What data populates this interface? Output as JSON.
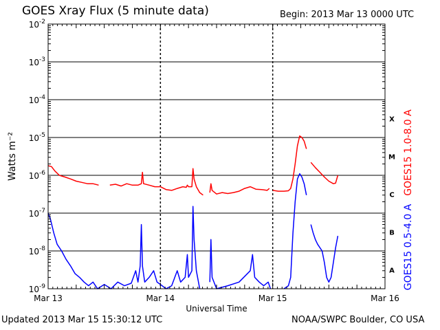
{
  "header": {
    "title": "GOES Xray Flux (5 minute data)",
    "begin": "Begin:  2013 Mar 13 0000 UTC"
  },
  "footer": {
    "updated": "Updated 2013 Mar 15 15:30:12 UTC",
    "credit": "NOAA/SWPC Boulder, CO USA"
  },
  "chart_data": {
    "type": "line",
    "title": "GOES Xray Flux (5 minute data)",
    "xlabel": "Universal Time",
    "ylabel": "Watts m⁻²",
    "yscale": "log",
    "ylim": [
      1e-09,
      0.01
    ],
    "xlim": [
      0,
      3
    ],
    "x_unit": "days since 2013 Mar 13 0000 UTC",
    "x_ticks": [
      {
        "x": 0,
        "label": "Mar 13"
      },
      {
        "x": 1,
        "label": "Mar 14"
      },
      {
        "x": 2,
        "label": "Mar 15"
      },
      {
        "x": 3,
        "label": "Mar 16"
      }
    ],
    "y_ticks": [
      {
        "exp": -2,
        "label": "10",
        "sup": "-2"
      },
      {
        "exp": -3,
        "label": "10",
        "sup": "-3"
      },
      {
        "exp": -4,
        "label": "10",
        "sup": "-4"
      },
      {
        "exp": -5,
        "label": "10",
        "sup": "-5"
      },
      {
        "exp": -6,
        "label": "10",
        "sup": "-6"
      },
      {
        "exp": -7,
        "label": "10",
        "sup": "-7"
      },
      {
        "exp": -8,
        "label": "10",
        "sup": "-8"
      },
      {
        "exp": -9,
        "label": "10",
        "sup": "-9"
      }
    ],
    "flare_classes": [
      {
        "label": "X",
        "exp": -4
      },
      {
        "label": "M",
        "exp": -5
      },
      {
        "label": "C",
        "exp": -6
      },
      {
        "label": "B",
        "exp": -7
      },
      {
        "label": "A",
        "exp": -8
      }
    ],
    "colors": {
      "long": "#ff0000",
      "short": "#0000ff",
      "grid": "#000000"
    },
    "series": [
      {
        "name": "GOES15 1.0-8.0 A",
        "color": "#ff0000",
        "segments": [
          [
            [
              0.0,
              1.8e-06
            ],
            [
              0.03,
              1.7e-06
            ],
            [
              0.06,
              1.3e-06
            ],
            [
              0.1,
              1e-06
            ],
            [
              0.15,
              9e-07
            ],
            [
              0.2,
              8e-07
            ],
            [
              0.25,
              7e-07
            ],
            [
              0.3,
              6.5e-07
            ],
            [
              0.35,
              6e-07
            ],
            [
              0.4,
              6e-07
            ],
            [
              0.45,
              5.5e-07
            ]
          ],
          [
            [
              0.55,
              5.5e-07
            ],
            [
              0.6,
              5.8e-07
            ],
            [
              0.65,
              5.2e-07
            ],
            [
              0.7,
              6e-07
            ],
            [
              0.75,
              5.5e-07
            ],
            [
              0.8,
              5.5e-07
            ],
            [
              0.83,
              6e-07
            ],
            [
              0.84,
              1.2e-06
            ],
            [
              0.85,
              6e-07
            ],
            [
              0.9,
              5.5e-07
            ],
            [
              0.95,
              5e-07
            ],
            [
              1.0,
              5e-07
            ],
            [
              1.05,
              4.2e-07
            ],
            [
              1.1,
              4e-07
            ],
            [
              1.15,
              4.5e-07
            ],
            [
              1.2,
              5e-07
            ],
            [
              1.23,
              4.8e-07
            ],
            [
              1.24,
              5.5e-07
            ],
            [
              1.25,
              5e-07
            ],
            [
              1.28,
              5e-07
            ],
            [
              1.29,
              1.5e-06
            ],
            [
              1.3,
              8e-07
            ],
            [
              1.32,
              5e-07
            ],
            [
              1.35,
              3.5e-07
            ],
            [
              1.38,
              3e-07
            ]
          ],
          [
            [
              1.44,
              3.5e-07
            ],
            [
              1.45,
              6e-07
            ],
            [
              1.46,
              4e-07
            ],
            [
              1.5,
              3.2e-07
            ],
            [
              1.55,
              3.5e-07
            ],
            [
              1.6,
              3.3e-07
            ],
            [
              1.65,
              3.5e-07
            ],
            [
              1.7,
              3.8e-07
            ],
            [
              1.75,
              4.5e-07
            ],
            [
              1.8,
              5e-07
            ],
            [
              1.85,
              4.3e-07
            ],
            [
              1.9,
              4.2e-07
            ],
            [
              1.95,
              4e-07
            ],
            [
              1.97,
              4.5e-07
            ]
          ],
          [
            [
              2.0,
              4e-07
            ],
            [
              2.05,
              3.8e-07
            ],
            [
              2.1,
              3.8e-07
            ],
            [
              2.14,
              3.9e-07
            ],
            [
              2.16,
              4.5e-07
            ],
            [
              2.18,
              8e-07
            ],
            [
              2.2,
              2e-06
            ],
            [
              2.22,
              6e-06
            ],
            [
              2.24,
              1.1e-05
            ],
            [
              2.26,
              1e-05
            ],
            [
              2.28,
              8e-06
            ],
            [
              2.3,
              5e-06
            ]
          ],
          [
            [
              2.34,
              2.2e-06
            ],
            [
              2.38,
              1.6e-06
            ],
            [
              2.42,
              1.2e-06
            ],
            [
              2.46,
              9e-07
            ],
            [
              2.5,
              7e-07
            ],
            [
              2.54,
              6e-07
            ],
            [
              2.56,
              6.2e-07
            ],
            [
              2.58,
              1e-06
            ]
          ]
        ]
      },
      {
        "name": "GOES15 0.5-4.0 A",
        "color": "#0000ff",
        "segments": [
          [
            [
              0.0,
              1e-07
            ],
            [
              0.02,
              7e-08
            ],
            [
              0.05,
              3e-08
            ],
            [
              0.08,
              1.5e-08
            ],
            [
              0.12,
              1e-08
            ],
            [
              0.16,
              6e-09
            ],
            [
              0.2,
              4e-09
            ],
            [
              0.24,
              2.5e-09
            ],
            [
              0.28,
              2e-09
            ],
            [
              0.32,
              1.5e-09
            ],
            [
              0.36,
              1.2e-09
            ],
            [
              0.4,
              1.5e-09
            ],
            [
              0.44,
              1e-09
            ],
            [
              0.5,
              1.3e-09
            ],
            [
              0.56,
              1e-09
            ],
            [
              0.62,
              1.5e-09
            ],
            [
              0.68,
              1.2e-09
            ],
            [
              0.74,
              1.4e-09
            ],
            [
              0.78,
              3e-09
            ],
            [
              0.8,
              1.5e-09
            ],
            [
              0.82,
              4e-09
            ],
            [
              0.83,
              5e-08
            ],
            [
              0.84,
              4e-09
            ],
            [
              0.86,
              1.5e-09
            ],
            [
              0.9,
              2e-09
            ],
            [
              0.94,
              3e-09
            ],
            [
              0.97,
              1.5e-09
            ],
            [
              1.0,
              1.3e-09
            ],
            [
              1.05,
              1e-09
            ],
            [
              1.1,
              1.2e-09
            ],
            [
              1.15,
              3e-09
            ],
            [
              1.18,
              1.5e-09
            ],
            [
              1.22,
              2e-09
            ],
            [
              1.24,
              8e-09
            ],
            [
              1.25,
              2e-09
            ],
            [
              1.28,
              3e-09
            ],
            [
              1.29,
              1.5e-07
            ],
            [
              1.3,
              2e-08
            ],
            [
              1.32,
              3e-09
            ],
            [
              1.35,
              1e-09
            ]
          ],
          [
            [
              1.44,
              1.5e-09
            ],
            [
              1.45,
              2e-08
            ],
            [
              1.46,
              2e-09
            ],
            [
              1.5,
              1e-09
            ],
            [
              1.6,
              1.2e-09
            ],
            [
              1.7,
              1.5e-09
            ],
            [
              1.8,
              3e-09
            ],
            [
              1.82,
              8e-09
            ],
            [
              1.84,
              2e-09
            ],
            [
              1.88,
              1.5e-09
            ],
            [
              1.92,
              1.2e-09
            ],
            [
              1.96,
              1.5e-09
            ],
            [
              1.98,
              1e-09
            ]
          ],
          [
            [
              2.1,
              1e-09
            ],
            [
              2.14,
              1.2e-09
            ],
            [
              2.16,
              2e-09
            ],
            [
              2.18,
              3e-08
            ],
            [
              2.2,
              2e-07
            ],
            [
              2.22,
              8e-07
            ],
            [
              2.24,
              1.1e-06
            ],
            [
              2.26,
              9e-07
            ],
            [
              2.28,
              6e-07
            ],
            [
              2.3,
              3e-07
            ]
          ],
          [
            [
              2.34,
              5e-08
            ],
            [
              2.36,
              3e-08
            ],
            [
              2.38,
              2e-08
            ],
            [
              2.4,
              1.5e-08
            ],
            [
              2.44,
              1e-08
            ],
            [
              2.46,
              5e-09
            ],
            [
              2.48,
              2e-09
            ],
            [
              2.5,
              1.5e-09
            ],
            [
              2.52,
              2e-09
            ],
            [
              2.54,
              5e-09
            ],
            [
              2.56,
              1.2e-08
            ],
            [
              2.58,
              2.5e-08
            ]
          ]
        ]
      }
    ]
  }
}
